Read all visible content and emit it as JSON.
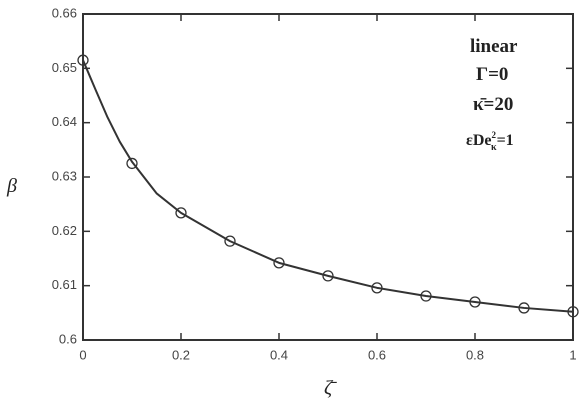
{
  "chart_data": {
    "type": "line",
    "x_label": "ζ̄",
    "y_label": "β",
    "xlim": [
      0,
      1
    ],
    "ylim": [
      0.6,
      0.66
    ],
    "xticks": [
      0,
      0.2,
      0.4,
      0.6,
      0.8,
      1
    ],
    "yticks": [
      0.6,
      0.61,
      0.62,
      0.63,
      0.64,
      0.65,
      0.66
    ],
    "series": [
      {
        "name": "linear",
        "color": "#333333",
        "mark": "line",
        "x": [
          0,
          0.025,
          0.05,
          0.075,
          0.1,
          0.15,
          0.2,
          0.3,
          0.4,
          0.5,
          0.6,
          0.7,
          0.8,
          0.9,
          1
        ],
        "values": [
          0.6515,
          0.6462,
          0.641,
          0.6365,
          0.6328,
          0.627,
          0.6234,
          0.6182,
          0.6142,
          0.6118,
          0.6096,
          0.6081,
          0.607,
          0.6059,
          0.6052
        ]
      },
      {
        "name": "points",
        "color": "#333333",
        "mark": "circle",
        "x": [
          0,
          0.1,
          0.2,
          0.3,
          0.4,
          0.5,
          0.6,
          0.7,
          0.8,
          0.9,
          1
        ],
        "values": [
          0.6515,
          0.6325,
          0.6234,
          0.6182,
          0.6142,
          0.6118,
          0.6096,
          0.6081,
          0.607,
          0.6059,
          0.6052
        ]
      }
    ],
    "annotations": [
      "linear",
      "Γ=0",
      "κ̄=20"
    ],
    "annotation_eps": {
      "base": "εDe",
      "sup": "2",
      "sub": "κ",
      "rest": "=1"
    }
  }
}
